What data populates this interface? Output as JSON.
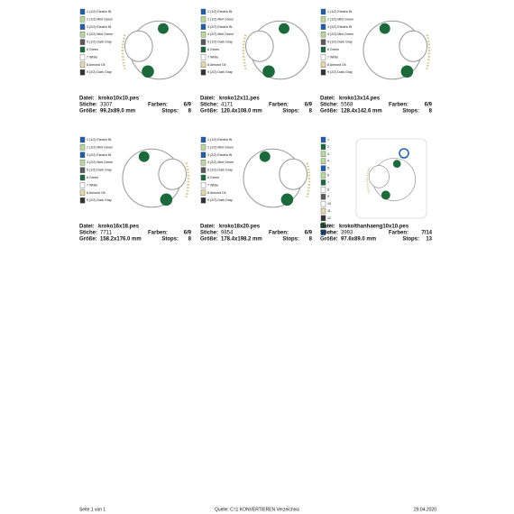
{
  "labels": {
    "file": "Datei:",
    "stitches": "Stiche:",
    "colors": "Farben:",
    "size": "Größe:",
    "stops": "Stops:"
  },
  "designs": [
    {
      "file": "kroko10x10.pes",
      "stitches": "3307",
      "colors": "6/9",
      "size": "99.2x89.0 mm",
      "stops": "8",
      "threads": [
        "1 (1/2) Electric Bl",
        "2 (1/2) Mint Green",
        "3 (2/2) Electric Bl",
        "4 (2/2) Mint Green",
        "5 (1/2) Dark Gray",
        "6 Green",
        "7 White",
        "8 Almond Oil",
        "9 (2/2) Dark Gray"
      ]
    },
    {
      "file": "kroko12x11.pes",
      "stitches": "4171",
      "colors": "6/9",
      "size": "120.4x108.0 mm",
      "stops": "8",
      "threads": [
        "1 (1/2) Electric Bl",
        "2 (1/2) Mint Green",
        "3 (2/2) Electric Bl",
        "4 (2/2) Mint Green",
        "5 (1/2) Dark Gray",
        "6 Green",
        "7 White",
        "8 Almond Oil",
        "9 (2/2) Dark Gray"
      ]
    },
    {
      "file": "kroko13x14.pes",
      "stitches": "5568",
      "colors": "6/9",
      "size": "128.4x142.6 mm",
      "stops": "8",
      "threads": [
        "1 (1/2) Electric Bl",
        "2 (1/2) Mint Green",
        "3 (2/2) Electric Bl",
        "4 (2/2) Mint Green",
        "5 (1/2) Dark Gray",
        "6 Green",
        "7 White",
        "8 Almond Oil",
        "9 (2/2) Dark Gray"
      ]
    },
    {
      "file": "kroko16x18.pes",
      "stitches": "7711",
      "colors": "6/9",
      "size": "158.2x176.0 mm",
      "stops": "8",
      "threads": [
        "1 (1/2) Electric Bl",
        "2 (1/2) Mint Green",
        "3 (2/2) Electric Bl",
        "4 (2/2) Mint Green",
        "5 (1/2) Dark Gray",
        "6 Green",
        "7 White",
        "8 Almond Oil",
        "9 (2/2) Dark Gray"
      ]
    },
    {
      "file": "kroko18x20.pes",
      "stitches": "9854",
      "colors": "6/9",
      "size": "178.4x198.2 mm",
      "stops": "8",
      "threads": [
        "1 (1/2) Electric Bl",
        "2 (1/2) Mint Green",
        "3 (2/2) Electric Bl",
        "4 (2/2) Mint Green",
        "5 (1/2) Dark Gray",
        "6 Green",
        "7 White",
        "8 Almond Oil",
        "9 (2/2) Dark Gray"
      ]
    },
    {
      "file": "krokolthanhaeng10x10.pes",
      "stitches": "3993",
      "colors": "7/14",
      "size": "97.6x89.0 mm",
      "stops": "13",
      "threads": [
        "1",
        "2",
        "3",
        "4",
        "5",
        "6",
        "7",
        "8",
        "9",
        "10",
        "11",
        "12",
        "13",
        "14"
      ]
    }
  ],
  "footer": {
    "page": "Seite 1 von 1",
    "source": "Quelle: C:\\1 KONVERTIEREN Verzeichnis",
    "date": "29.04.2020"
  }
}
